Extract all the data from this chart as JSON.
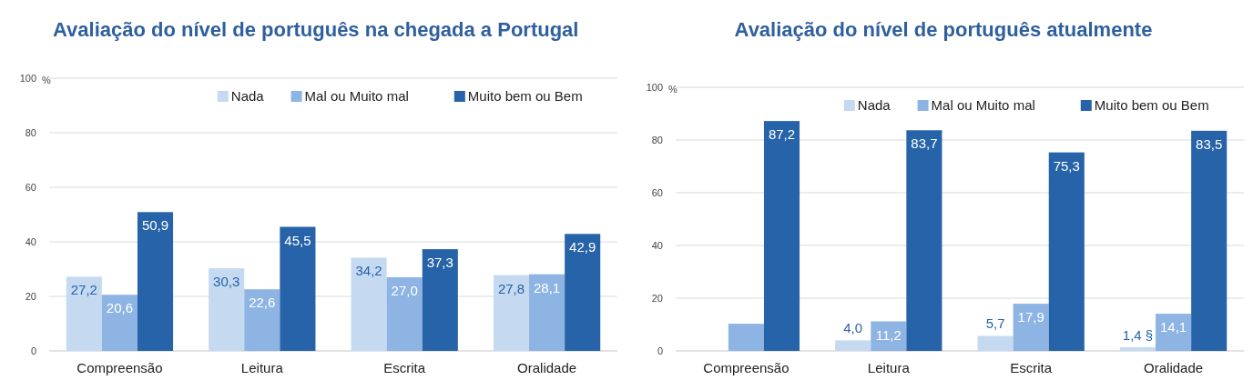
{
  "chart_data": [
    {
      "type": "bar",
      "title": "Avaliação do nível de português na chegada a Portugal",
      "ylabel": "%",
      "categories": [
        "Compreensão",
        "Leitura",
        "Escrita",
        "Oralidade"
      ],
      "series": [
        {
          "name": "Nada",
          "color": "#c5d9f1",
          "values": [
            27.2,
            30.3,
            34.2,
            27.8
          ],
          "value_labels": [
            "27,2",
            "30,3",
            "34,2",
            "27,8"
          ]
        },
        {
          "name": "Mal ou Muito mal",
          "color": "#8eb4e3",
          "values": [
            20.6,
            22.6,
            27.0,
            28.1
          ],
          "value_labels": [
            "20,6",
            "22,6",
            "27,0",
            "28,1"
          ]
        },
        {
          "name": "Muito bem ou Bem",
          "color": "#2763a9",
          "values": [
            50.9,
            45.5,
            37.3,
            42.9
          ],
          "value_labels": [
            "50,9",
            "45,5",
            "37,3",
            "42,9"
          ]
        }
      ],
      "ylim": [
        0,
        100
      ],
      "yticks": [
        0,
        20,
        40,
        60,
        80,
        100
      ],
      "grid": "y",
      "legend": "top right"
    },
    {
      "type": "bar",
      "title": "Avaliação do nível de português atualmente",
      "ylabel": "%",
      "categories": [
        "Compreensão",
        "Leitura",
        "Escrita",
        "Oralidade"
      ],
      "series": [
        {
          "name": "Nada",
          "color": "#c5d9f1",
          "values": [
            null,
            4.0,
            5.7,
            1.4
          ],
          "value_labels": [
            null,
            "4,0",
            "5,7",
            "1,4 §"
          ]
        },
        {
          "name": "Mal ou Muito mal",
          "color": "#8eb4e3",
          "values": [
            10.3,
            11.2,
            17.9,
            14.1
          ],
          "value_labels": [
            null,
            "11,2",
            "17,9",
            "14,1"
          ]
        },
        {
          "name": "Muito bem ou Bem",
          "color": "#2763a9",
          "values": [
            87.2,
            83.7,
            75.3,
            83.5
          ],
          "value_labels": [
            "87,2",
            "83,7",
            "75,3",
            "83,5"
          ]
        }
      ],
      "ylim": [
        0,
        100
      ],
      "yticks": [
        0,
        20,
        40,
        60,
        80,
        100
      ],
      "grid": "y",
      "legend": "top right"
    }
  ]
}
